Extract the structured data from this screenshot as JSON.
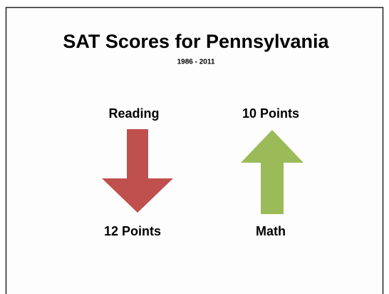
{
  "title": "SAT Scores for Pennsylvania",
  "subtitle": "1986 - 2011",
  "items": [
    {
      "label": "Reading",
      "change": "12 Points"
    },
    {
      "label": "Math",
      "change": "10 Points"
    }
  ]
}
